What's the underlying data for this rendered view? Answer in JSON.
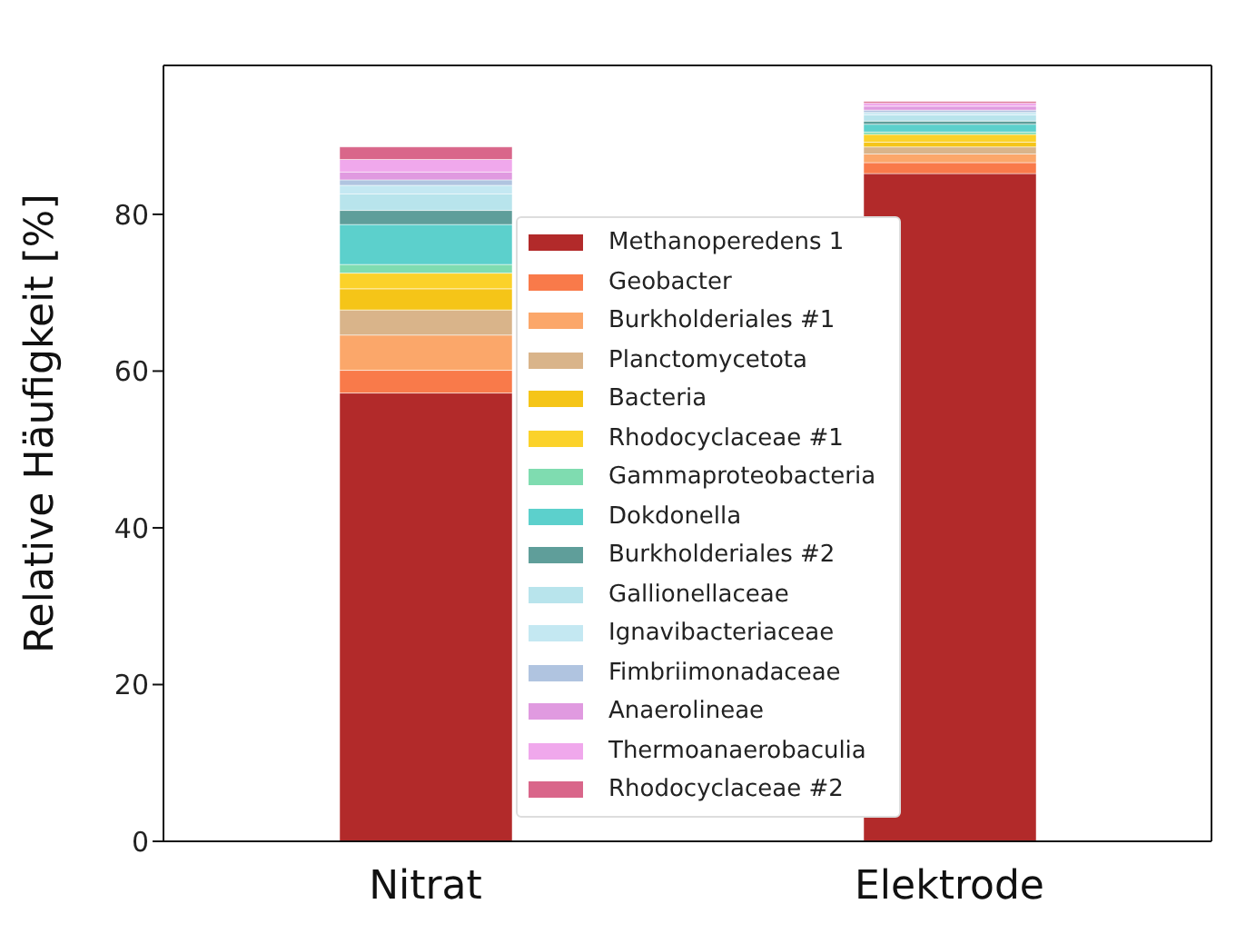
{
  "chart_data": {
    "type": "bar",
    "ylabel": "Relative Häufigkeit [%]",
    "categories": [
      "Nitrat",
      "Elektrode"
    ],
    "stacked": true,
    "ylim": [
      0,
      99
    ],
    "yticks": [
      0,
      20,
      40,
      60,
      80
    ],
    "grid": false,
    "legend": "bottom",
    "series": [
      {
        "name": "Methanoperedens 1",
        "color": "#b22a2a",
        "values": [
          57.2,
          85.2
        ]
      },
      {
        "name": "Geobacter",
        "color": "#f97a4a",
        "values": [
          2.9,
          1.4
        ]
      },
      {
        "name": "Burkholderiales #1",
        "color": "#fba76a",
        "values": [
          4.5,
          1.1
        ]
      },
      {
        "name": "Planctomycetota",
        "color": "#d9b48a",
        "values": [
          3.2,
          0.9
        ]
      },
      {
        "name": "Bacteria",
        "color": "#f5c518",
        "values": [
          2.7,
          0.6
        ]
      },
      {
        "name": "Rhodocyclaceae #1",
        "color": "#fbd22a",
        "values": [
          2.0,
          1.0
        ]
      },
      {
        "name": "Gammaproteobacteria",
        "color": "#7fdcb0",
        "values": [
          1.1,
          0.3
        ]
      },
      {
        "name": "Dokdonella",
        "color": "#5cd0cc",
        "values": [
          5.1,
          1.0
        ]
      },
      {
        "name": "Burkholderiales #2",
        "color": "#5f9e9a",
        "values": [
          1.8,
          0.4
        ]
      },
      {
        "name": "Gallionellaceae",
        "color": "#b8e4ec",
        "values": [
          2.1,
          0.8
        ]
      },
      {
        "name": "Ignavibacteriaceae",
        "color": "#c4e8f2",
        "values": [
          1.1,
          0.3
        ]
      },
      {
        "name": "Fimbriimonadaceae",
        "color": "#b0c4e0",
        "values": [
          0.7,
          0.3
        ]
      },
      {
        "name": "Anaerolineae",
        "color": "#e09ae0",
        "values": [
          1.0,
          0.5
        ]
      },
      {
        "name": "Thermoanaerobaculia",
        "color": "#f0a8ec",
        "values": [
          1.6,
          0.4
        ]
      },
      {
        "name": "Rhodocyclaceae #2",
        "color": "#d9668a",
        "values": [
          1.6,
          0.2
        ]
      }
    ]
  }
}
